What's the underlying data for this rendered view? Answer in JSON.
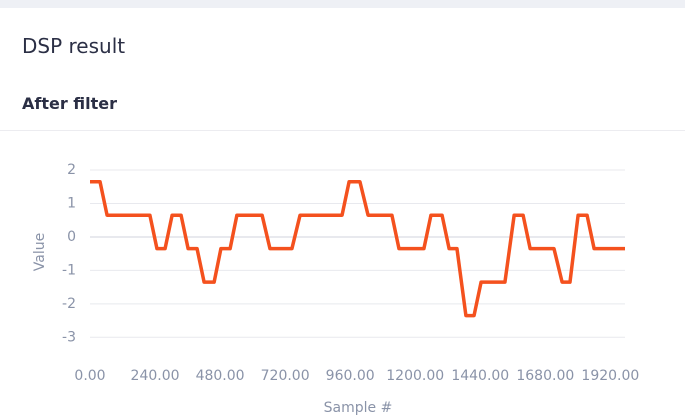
{
  "header": {
    "title": "DSP result"
  },
  "section": {
    "title": "After filter"
  },
  "chart_data": {
    "type": "line",
    "x_label": "Sample #",
    "y_label": "Value",
    "x": [
      0,
      37,
      63,
      221,
      247,
      277,
      303,
      336,
      362,
      395,
      421,
      458,
      483,
      517,
      542,
      635,
      664,
      745,
      775,
      930,
      956,
      996,
      1026,
      1114,
      1140,
      1232,
      1258,
      1299,
      1325,
      1354,
      1387,
      1417,
      1443,
      1531,
      1565,
      1598,
      1624,
      1712,
      1742,
      1771,
      1801,
      1834,
      1860,
      1974
    ],
    "series": [
      {
        "color": "#f4511e",
        "values": [
          1.65,
          1.65,
          0.65,
          0.65,
          -0.35,
          -0.35,
          0.65,
          0.65,
          -0.35,
          -0.35,
          -1.35,
          -1.35,
          -0.35,
          -0.35,
          0.65,
          0.65,
          -0.35,
          -0.35,
          0.65,
          0.65,
          1.65,
          1.65,
          0.65,
          0.65,
          -0.35,
          -0.35,
          0.65,
          0.65,
          -0.35,
          -0.35,
          -2.35,
          -2.35,
          -1.35,
          -1.35,
          0.65,
          0.65,
          -0.35,
          -0.35,
          -1.35,
          -1.35,
          0.65,
          0.65,
          -0.35,
          -0.35
        ]
      }
    ],
    "xlim": [
      0,
      1974
    ],
    "ylim": [
      -3.2,
      2.3
    ],
    "xticks": [
      {
        "value": 0,
        "label": "0.00"
      },
      {
        "value": 240,
        "label": "240.00"
      },
      {
        "value": 480,
        "label": "480.00"
      },
      {
        "value": 720,
        "label": "720.00"
      },
      {
        "value": 960,
        "label": "960.00"
      },
      {
        "value": 1200,
        "label": "1200.00"
      },
      {
        "value": 1440,
        "label": "1440.00"
      },
      {
        "value": 1680,
        "label": "1680.00"
      },
      {
        "value": 1920,
        "label": "1920.00"
      }
    ],
    "yticks": [
      2,
      1,
      0,
      -1,
      -2,
      -3
    ],
    "grid": true
  }
}
